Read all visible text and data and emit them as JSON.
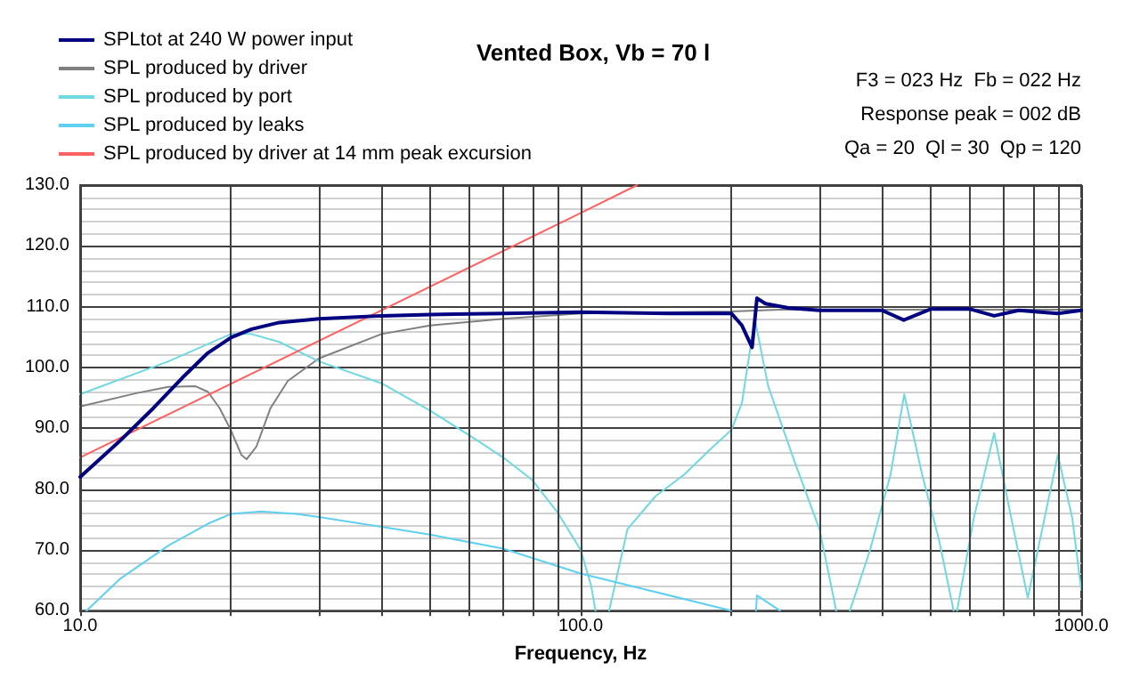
{
  "chart_data": {
    "type": "line",
    "title": "Vented Box, Vb = 70 l",
    "xlabel": "Frequency, Hz",
    "annotations": [
      "F3 = 023 Hz  Fb = 022 Hz",
      "Response peak = 002 dB",
      "Qa = 20  Ql = 30  Qp = 120"
    ],
    "log": "x",
    "grid": true,
    "legend": "top left",
    "line_style": "solid",
    "marker": "none",
    "xlim": [
      10,
      1000
    ],
    "xticks": [
      {
        "value": 10,
        "label": "10.0"
      },
      {
        "value": 20,
        "label": null
      },
      {
        "value": 30,
        "label": null
      },
      {
        "value": 40,
        "label": null
      },
      {
        "value": 50,
        "label": null
      },
      {
        "value": 60,
        "label": null
      },
      {
        "value": 70,
        "label": null
      },
      {
        "value": 80,
        "label": null
      },
      {
        "value": 90,
        "label": null
      },
      {
        "value": 100,
        "label": "100.0"
      },
      {
        "value": 200,
        "label": null
      },
      {
        "value": 300,
        "label": null
      },
      {
        "value": 400,
        "label": null
      },
      {
        "value": 500,
        "label": null
      },
      {
        "value": 600,
        "label": null
      },
      {
        "value": 700,
        "label": null
      },
      {
        "value": 800,
        "label": null
      },
      {
        "value": 900,
        "label": null
      },
      {
        "value": 1000,
        "label": "1000.0"
      }
    ],
    "ylim": [
      60,
      130
    ],
    "yticks": [
      {
        "value": 60,
        "label": "60.0"
      },
      {
        "value": 70,
        "label": "70.0"
      },
      {
        "value": 80,
        "label": "80.0"
      },
      {
        "value": 90,
        "label": "90.0"
      },
      {
        "value": 100,
        "label": "100.0"
      },
      {
        "value": 110,
        "label": "110.0"
      },
      {
        "value": 120,
        "label": "120.0"
      },
      {
        "value": 130,
        "label": "130.0"
      }
    ],
    "series": [
      {
        "name": "SPLtot at 240 W power input",
        "color": "#000080",
        "x": [
          10,
          12,
          14,
          16,
          18,
          20,
          22,
          25,
          30,
          40,
          50,
          70,
          100,
          150,
          200,
          210,
          220,
          225,
          234,
          260,
          300,
          400,
          442,
          500,
          600,
          670,
          750,
          897,
          1000
        ],
        "values": [
          82,
          87.9,
          93.3,
          98.3,
          102.4,
          104.9,
          106.3,
          107.4,
          108,
          108.5,
          108.7,
          108.9,
          109.1,
          108.9,
          108.9,
          106.9,
          103.3,
          111.4,
          110.5,
          109.8,
          109.4,
          109.4,
          107.8,
          109.6,
          109.6,
          108.5,
          109.4,
          108.9,
          109.4
        ]
      },
      {
        "name": "SPL produced by driver",
        "color": "#808080",
        "x": [
          10,
          13,
          15,
          17,
          18,
          19,
          20,
          21,
          21.5,
          22.5,
          24,
          26,
          30,
          40,
          50,
          70,
          100,
          200,
          250,
          400,
          1000
        ],
        "values": [
          93.6,
          95.8,
          96.8,
          96.9,
          96,
          93.3,
          89.7,
          85.6,
          84.9,
          87,
          93.3,
          97.8,
          101.5,
          105.5,
          106.9,
          108,
          108.9,
          109.2,
          109.5,
          109.5,
          109.5
        ]
      },
      {
        "name": "SPL produced by port",
        "color": "#70d8e0",
        "x": [
          10,
          15,
          20,
          22,
          25,
          30,
          40,
          50,
          60,
          70,
          80,
          90,
          100,
          105,
          107,
          110,
          114,
          124,
          141,
          161,
          184,
          200,
          210,
          220,
          223,
          237,
          268,
          300,
          324,
          335,
          345,
          378,
          416,
          443,
          481,
          520,
          556,
          560,
          565,
          610,
          670,
          725,
          782,
          898,
          960,
          1000
        ],
        "values": [
          95.6,
          101,
          105.5,
          105.5,
          104.2,
          101,
          97.4,
          92.9,
          88.8,
          85.2,
          81.5,
          76.1,
          70,
          64,
          60,
          null,
          60,
          73.4,
          78.8,
          82.4,
          87,
          89.7,
          94.2,
          105.1,
          107.8,
          96.9,
          84.3,
          73.4,
          60,
          null,
          60,
          69.8,
          82.4,
          95.6,
          82.4,
          71.6,
          60,
          null,
          60,
          75.2,
          89.2,
          75.2,
          62.1,
          85.6,
          75.2,
          63.4
        ]
      },
      {
        "name": "SPL produced by leaks",
        "color": "#60d0f0",
        "x": [
          10.3,
          12,
          15,
          18,
          20,
          23,
          27,
          30,
          40,
          50,
          70,
          100,
          200,
          212,
          224,
          225,
          250
        ],
        "values": [
          60,
          65.2,
          70.7,
          74.3,
          75.9,
          76.3,
          75.9,
          75.4,
          73.8,
          72.5,
          70.2,
          66.1,
          60,
          null,
          60,
          62.5,
          60
        ]
      },
      {
        "name": "SPL produced by driver at 14 mm peak excursion",
        "color": "#ff6060",
        "x": [
          10,
          100,
          129.6
        ],
        "values": [
          85.2,
          125.4,
          130
        ]
      }
    ]
  }
}
